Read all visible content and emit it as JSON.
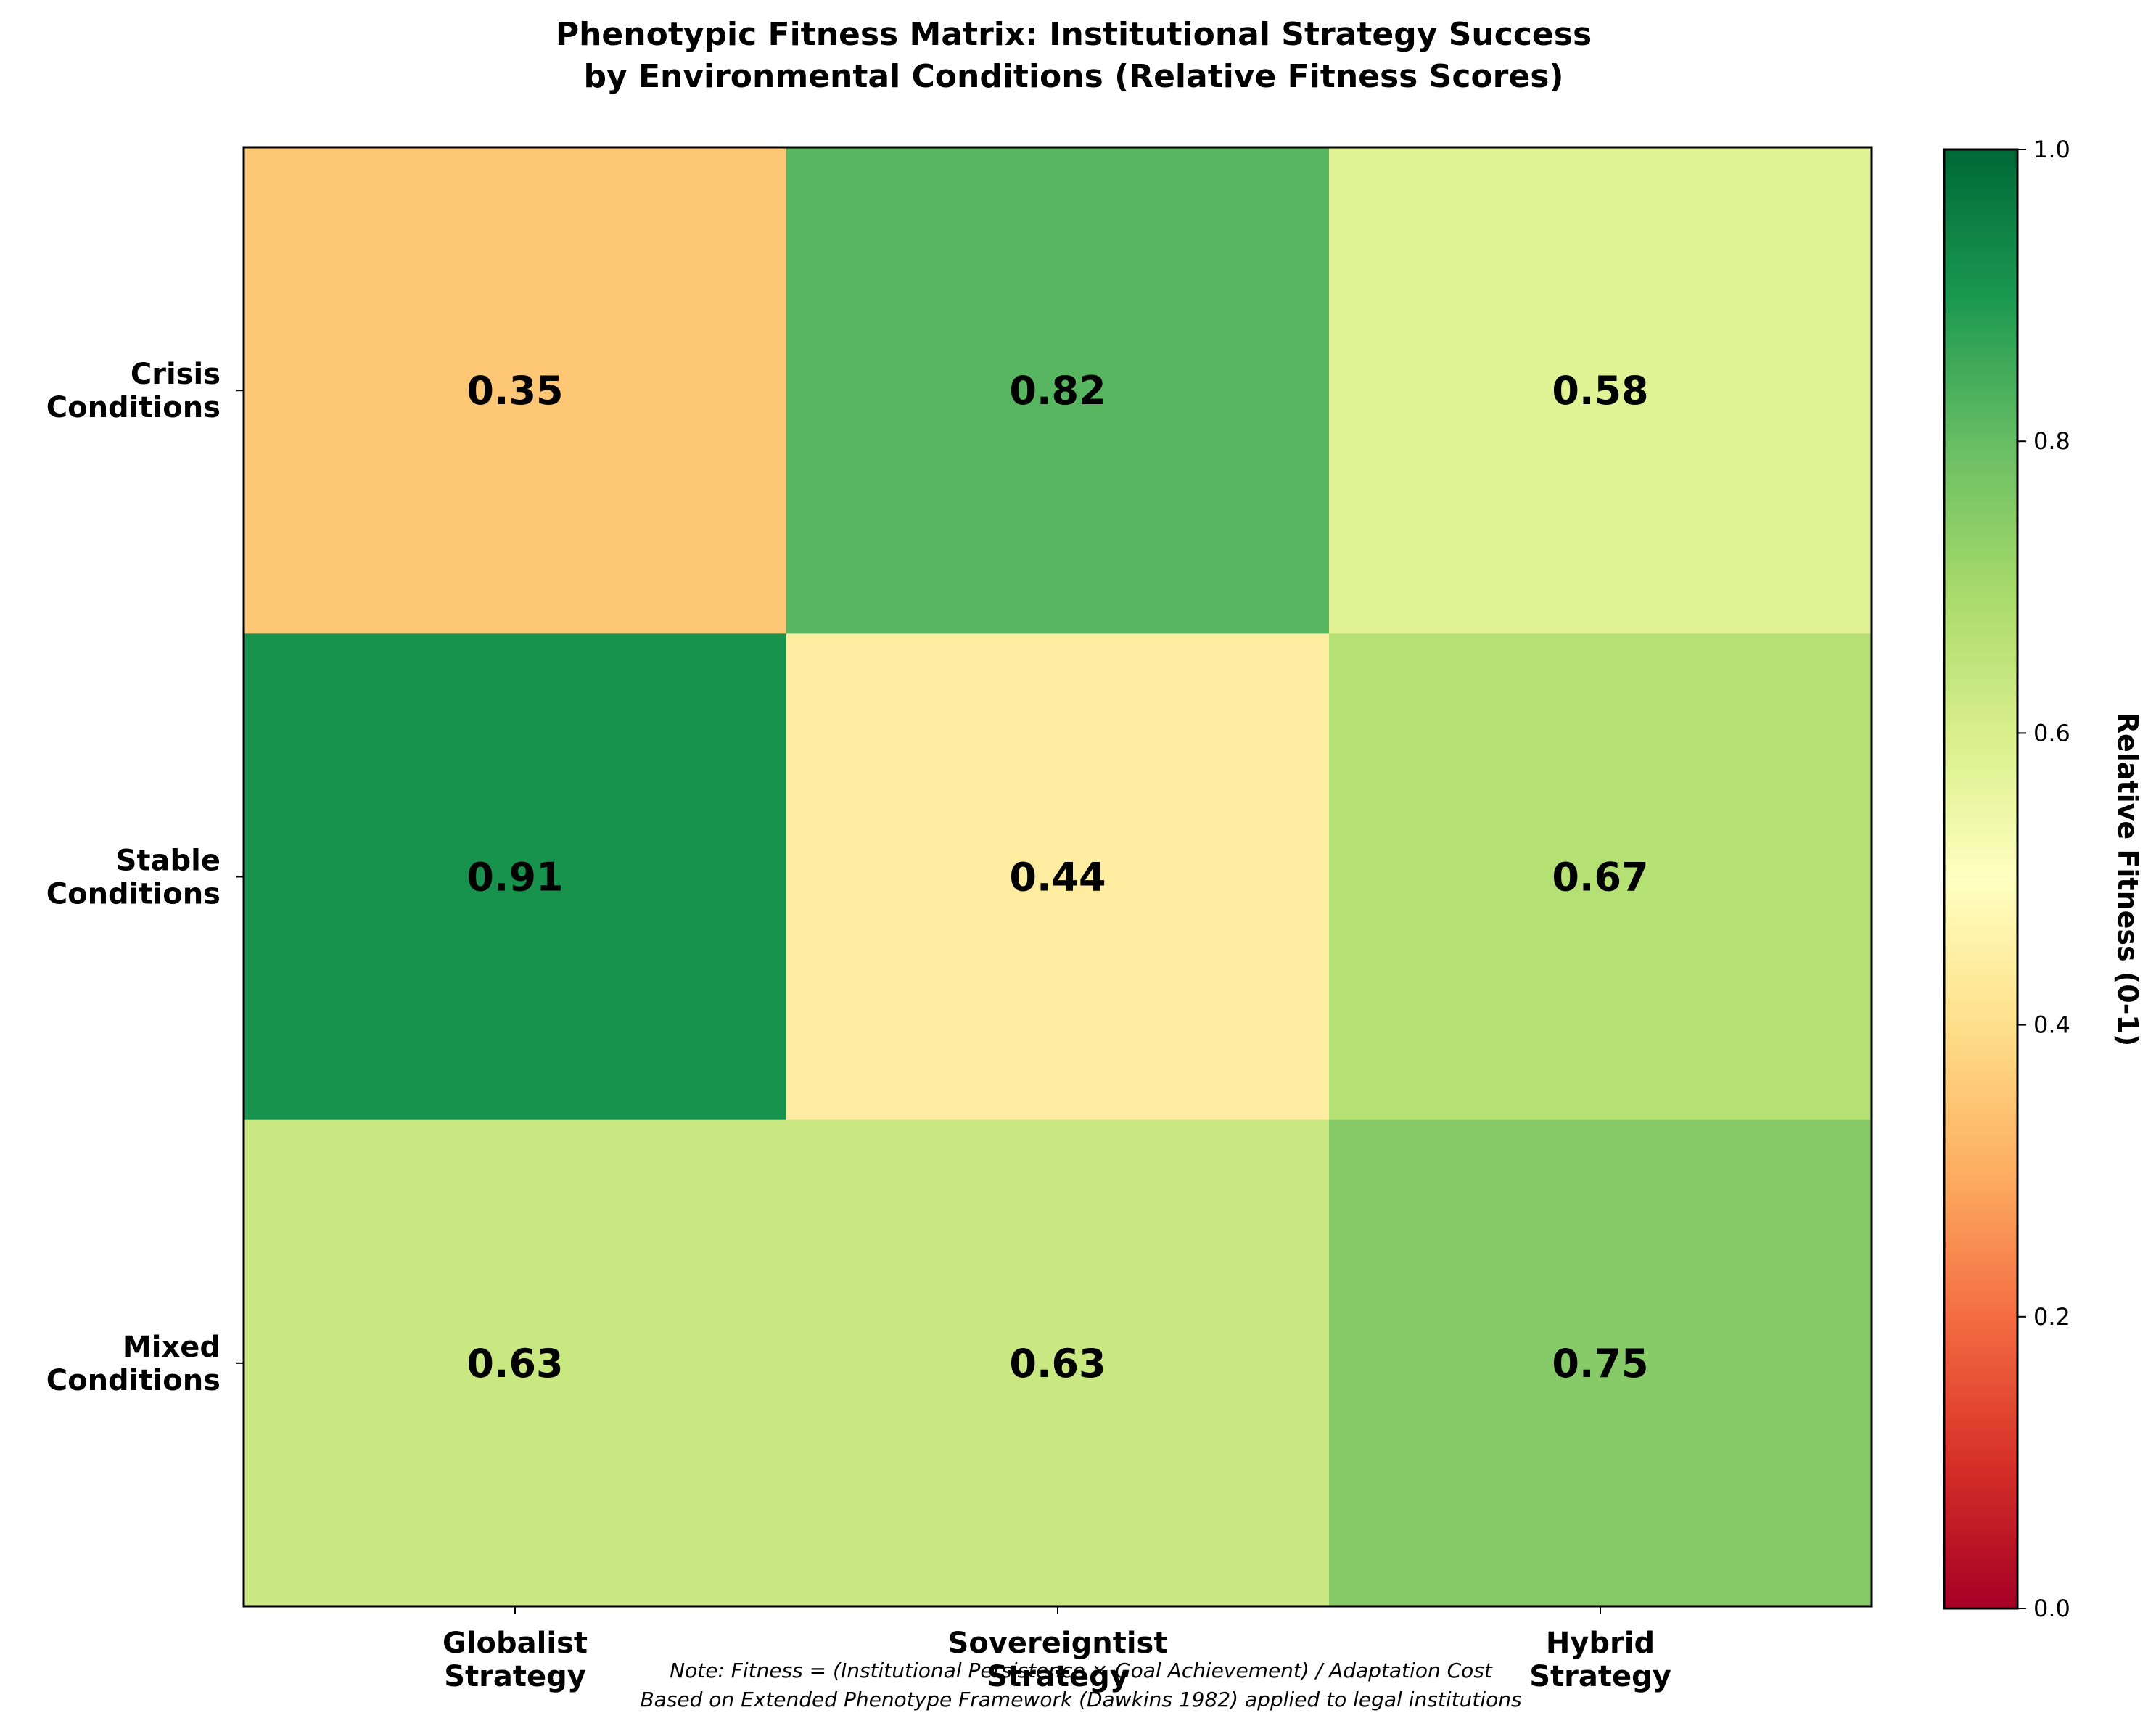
{
  "chart_data": {
    "type": "heatmap",
    "title_lines": [
      "Phenotypic Fitness Matrix: Institutional Strategy Success",
      "by Environmental Conditions (Relative Fitness Scores)"
    ],
    "columns": [
      {
        "lines": [
          "Globalist",
          "Strategy"
        ]
      },
      {
        "lines": [
          "Sovereigntist",
          "Strategy"
        ]
      },
      {
        "lines": [
          "Hybrid",
          "Strategy"
        ]
      }
    ],
    "rows": [
      {
        "lines": [
          "Crisis",
          "Conditions"
        ]
      },
      {
        "lines": [
          "Stable",
          "Conditions"
        ]
      },
      {
        "lines": [
          "Mixed",
          "Conditions"
        ]
      }
    ],
    "values": [
      [
        0.35,
        0.82,
        0.58
      ],
      [
        0.91,
        0.44,
        0.67
      ],
      [
        0.63,
        0.63,
        0.75
      ]
    ],
    "value_labels": [
      [
        "0.35",
        "0.82",
        "0.58"
      ],
      [
        "0.91",
        "0.44",
        "0.67"
      ],
      [
        "0.63",
        "0.63",
        "0.75"
      ]
    ],
    "colormap": "RdYlGn",
    "colormap_stops": [
      "#a50026",
      "#d73027",
      "#f46d43",
      "#fdae61",
      "#fee08b",
      "#ffffbf",
      "#d9ef8b",
      "#a6d96a",
      "#66bd63",
      "#1a9850",
      "#006837"
    ],
    "vmin": 0.0,
    "vmax": 1.0,
    "colorbar": {
      "label": "Relative Fitness (0-1)",
      "ticks": [
        0.0,
        0.2,
        0.4,
        0.6,
        0.8,
        1.0
      ],
      "tick_labels": [
        "0.0",
        "0.2",
        "0.4",
        "0.6",
        "0.8",
        "1.0"
      ]
    },
    "notes": [
      "Note: Fitness = (Institutional Persistence × Goal Achievement) / Adaptation Cost",
      "Based on Extended Phenotype Framework (Dawkins 1982) applied to legal institutions"
    ]
  }
}
